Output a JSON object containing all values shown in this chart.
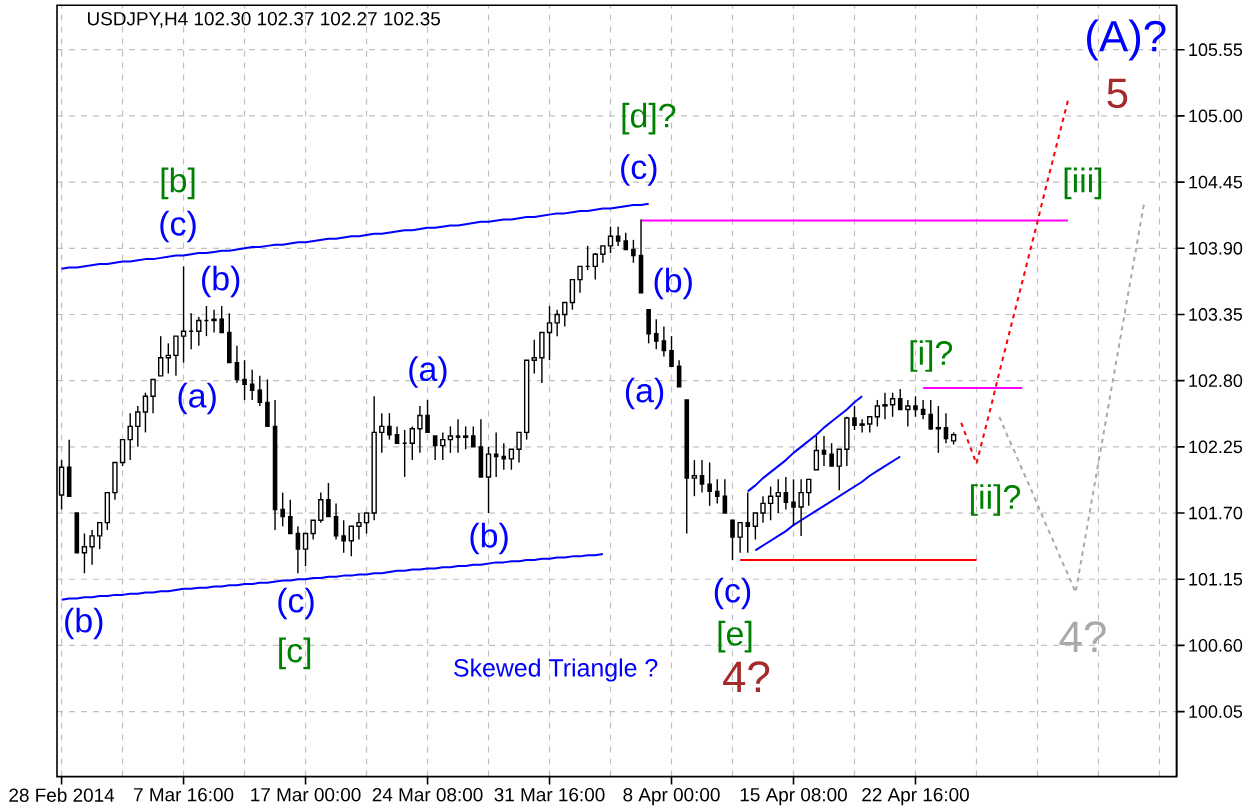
{
  "chart_data": {
    "type": "candlestick",
    "title": "USDJPY,H4 102.30 102.37 102.27 102.35",
    "color": "#000000",
    "categories": [
      "28 Feb 2014",
      null,
      null,
      null,
      null,
      null,
      null,
      null,
      null,
      null,
      null,
      null,
      null,
      null,
      null,
      null,
      "7 Mar 16:00",
      null,
      null,
      null,
      null,
      null,
      null,
      null,
      null,
      null,
      null,
      null,
      null,
      null,
      null,
      null,
      "17 Mar 00:00",
      null,
      null,
      null,
      null,
      null,
      null,
      null,
      null,
      null,
      null,
      null,
      null,
      null,
      null,
      null,
      "24 Mar 08:00",
      null,
      null,
      null,
      null,
      null,
      null,
      null,
      null,
      null,
      null,
      null,
      null,
      null,
      null,
      null,
      "31 Mar 16:00",
      null,
      null,
      null,
      null,
      null,
      null,
      null,
      null,
      null,
      null,
      null,
      null,
      null,
      null,
      null,
      "8 Apr 00:00",
      null,
      null,
      null,
      null,
      null,
      null,
      null,
      null,
      null,
      null,
      null,
      null,
      null,
      null,
      null,
      "15 Apr 08:00",
      null,
      null,
      null,
      null,
      null,
      null,
      null,
      null,
      null,
      null,
      null,
      null,
      null,
      null,
      null,
      "22 Apr 16:00",
      null,
      null,
      null,
      null,
      null,
      null,
      null,
      null,
      null,
      null,
      null,
      null,
      null,
      null,
      null,
      null,
      null,
      null,
      null,
      null,
      null,
      null,
      null,
      null,
      null,
      null,
      null,
      null,
      null,
      null,
      null,
      null,
      null,
      null
    ],
    "ohlc": [
      [
        101.85,
        102.14,
        101.73,
        102.08
      ],
      [
        102.08,
        102.31,
        101.84,
        101.84
      ],
      [
        101.7,
        101.7,
        101.37,
        101.37
      ],
      [
        101.37,
        101.53,
        101.2,
        101.42
      ],
      [
        101.42,
        101.56,
        101.27,
        101.51
      ],
      [
        101.51,
        101.62,
        101.4,
        101.62
      ],
      [
        101.62,
        101.87,
        101.56,
        101.87
      ],
      [
        101.87,
        102.12,
        101.81,
        102.12
      ],
      [
        102.12,
        102.31,
        102.09,
        102.31
      ],
      [
        102.31,
        102.53,
        102.14,
        102.42
      ],
      [
        102.42,
        102.59,
        102.25,
        102.54
      ],
      [
        102.54,
        102.7,
        102.37,
        102.67
      ],
      [
        102.67,
        102.81,
        102.53,
        102.81
      ],
      [
        102.84,
        103.17,
        102.84,
        102.99
      ],
      [
        102.99,
        103.11,
        102.86,
        103.01
      ],
      [
        103.01,
        103.17,
        102.84,
        103.17
      ],
      [
        103.17,
        103.75,
        102.95,
        103.21
      ],
      [
        103.21,
        103.36,
        103.06,
        103.21
      ],
      [
        103.21,
        103.33,
        103.09,
        103.3
      ],
      [
        103.3,
        103.42,
        103.17,
        103.3
      ],
      [
        103.3,
        103.39,
        103.2,
        103.31
      ],
      [
        103.31,
        103.42,
        103.2,
        103.2
      ],
      [
        103.2,
        103.36,
        102.95,
        102.95
      ],
      [
        102.95,
        103.09,
        102.78,
        102.81
      ],
      [
        102.81,
        102.97,
        102.64,
        102.77
      ],
      [
        102.77,
        102.89,
        102.64,
        102.72
      ],
      [
        102.72,
        102.84,
        102.59,
        102.62
      ],
      [
        102.62,
        102.81,
        102.42,
        102.42
      ],
      [
        102.42,
        102.64,
        101.56,
        101.73
      ],
      [
        101.73,
        101.87,
        101.59,
        101.67
      ],
      [
        101.67,
        101.81,
        101.53,
        101.53
      ],
      [
        101.53,
        101.59,
        101.2,
        101.4
      ],
      [
        101.4,
        101.53,
        101.26,
        101.53
      ],
      [
        101.53,
        101.64,
        101.48,
        101.64
      ],
      [
        101.64,
        101.87,
        101.62,
        101.81
      ],
      [
        101.81,
        101.95,
        101.67,
        101.67
      ],
      [
        101.67,
        101.78,
        101.48,
        101.51
      ],
      [
        101.51,
        101.64,
        101.37,
        101.47
      ],
      [
        101.47,
        101.59,
        101.34,
        101.59
      ],
      [
        101.59,
        101.7,
        101.48,
        101.62
      ],
      [
        101.62,
        101.7,
        101.53,
        101.7
      ],
      [
        101.7,
        102.67,
        101.64,
        102.37
      ],
      [
        102.37,
        102.53,
        102.2,
        102.42
      ],
      [
        102.42,
        102.53,
        102.31,
        102.35
      ],
      [
        102.35,
        102.42,
        102.28,
        102.28
      ],
      [
        102.28,
        102.39,
        102.0,
        102.28
      ],
      [
        102.28,
        102.42,
        102.14,
        102.4
      ],
      [
        102.4,
        102.59,
        102.2,
        102.51
      ],
      [
        102.51,
        102.64,
        102.37,
        102.37
      ],
      [
        102.34,
        102.34,
        102.14,
        102.26
      ],
      [
        102.26,
        102.37,
        102.14,
        102.31
      ],
      [
        102.31,
        102.42,
        102.2,
        102.34
      ],
      [
        102.34,
        102.48,
        102.2,
        102.33
      ],
      [
        102.33,
        102.42,
        102.23,
        102.34
      ],
      [
        102.34,
        102.42,
        102.25,
        102.25
      ],
      [
        102.25,
        102.48,
        102.0,
        102.0
      ],
      [
        102.0,
        102.25,
        101.7,
        102.19
      ],
      [
        102.19,
        102.37,
        102.0,
        102.17
      ],
      [
        102.17,
        102.28,
        102.06,
        102.15
      ],
      [
        102.15,
        102.23,
        102.06,
        102.23
      ],
      [
        102.23,
        102.37,
        102.12,
        102.37
      ],
      [
        102.37,
        102.97,
        102.31,
        102.97
      ],
      [
        102.97,
        103.14,
        102.86,
        102.99
      ],
      [
        102.99,
        103.2,
        102.78,
        103.2
      ],
      [
        103.2,
        103.42,
        102.97,
        103.28
      ],
      [
        103.28,
        103.39,
        103.17,
        103.35
      ],
      [
        103.35,
        103.45,
        103.25,
        103.45
      ],
      [
        103.45,
        103.64,
        103.39,
        103.64
      ],
      [
        103.64,
        103.75,
        103.53,
        103.75
      ],
      [
        103.75,
        103.92,
        103.72,
        103.75
      ],
      [
        103.75,
        103.86,
        103.64,
        103.85
      ],
      [
        103.85,
        103.92,
        103.78,
        103.92
      ],
      [
        103.92,
        104.08,
        103.86,
        104.0
      ],
      [
        104.0,
        104.08,
        103.92,
        103.96
      ],
      [
        103.96,
        104.03,
        103.89,
        103.89
      ],
      [
        103.89,
        103.97,
        103.78,
        103.84
      ],
      [
        103.84,
        104.14,
        103.53,
        103.53
      ],
      [
        103.39,
        103.39,
        103.11,
        103.19
      ],
      [
        103.19,
        103.31,
        103.06,
        103.13
      ],
      [
        103.13,
        103.25,
        103.0,
        103.05
      ],
      [
        103.05,
        103.17,
        102.92,
        102.92
      ],
      [
        102.92,
        102.97,
        102.75,
        102.75
      ],
      [
        102.64,
        102.64,
        101.53,
        101.99
      ],
      [
        101.99,
        102.14,
        101.84,
        102.01
      ],
      [
        102.01,
        102.14,
        101.87,
        101.94
      ],
      [
        101.94,
        102.12,
        101.76,
        101.88
      ],
      [
        101.88,
        101.98,
        101.78,
        101.84
      ],
      [
        101.84,
        101.98,
        101.7,
        101.7
      ],
      [
        101.64,
        101.64,
        101.31,
        101.5
      ],
      [
        101.5,
        101.62,
        101.37,
        101.62
      ],
      [
        101.62,
        101.87,
        101.37,
        101.59
      ],
      [
        101.59,
        101.7,
        101.48,
        101.7
      ],
      [
        101.7,
        101.84,
        101.62,
        101.78
      ],
      [
        101.78,
        101.92,
        101.64,
        101.84
      ],
      [
        101.84,
        101.98,
        101.7,
        101.87
      ],
      [
        101.87,
        102.0,
        101.73,
        101.79
      ],
      [
        101.79,
        101.98,
        101.59,
        101.75
      ],
      [
        101.75,
        101.98,
        101.51,
        101.87
      ],
      [
        101.87,
        101.98,
        101.76,
        101.98
      ],
      [
        102.06,
        102.34,
        102.06,
        102.22
      ],
      [
        102.22,
        102.34,
        102.09,
        102.19
      ],
      [
        102.19,
        102.28,
        102.09,
        102.09
      ],
      [
        102.09,
        102.23,
        101.89,
        102.23
      ],
      [
        102.23,
        102.5,
        102.09,
        102.49
      ],
      [
        102.49,
        102.59,
        102.39,
        102.43
      ],
      [
        102.43,
        102.48,
        102.37,
        102.44
      ],
      [
        102.44,
        102.5,
        102.37,
        102.5
      ],
      [
        102.5,
        102.64,
        102.42,
        102.59
      ],
      [
        102.59,
        102.7,
        102.48,
        102.6
      ],
      [
        102.6,
        102.7,
        102.5,
        102.65
      ],
      [
        102.65,
        102.73,
        102.56,
        102.56
      ],
      [
        102.56,
        102.64,
        102.42,
        102.59
      ],
      [
        102.59,
        102.67,
        102.5,
        102.56
      ],
      [
        102.56,
        102.64,
        102.48,
        102.52
      ],
      [
        102.52,
        102.64,
        102.39,
        102.4
      ],
      [
        102.4,
        102.59,
        102.2,
        102.41
      ],
      [
        102.41,
        102.53,
        102.28,
        102.32
      ],
      [
        102.3,
        102.37,
        102.27,
        102.35
      ],
      null,
      null,
      null,
      null,
      null,
      null,
      null,
      null,
      null,
      null,
      null,
      null,
      null,
      null,
      null,
      null,
      null,
      null,
      null,
      null,
      null,
      null,
      null,
      null,
      null,
      null,
      null,
      null,
      null
    ],
    "series": [
      {
        "type": "line",
        "color": "#0000ff",
        "values": [
          103.73,
          103.74,
          103.74,
          103.75,
          103.76,
          103.77,
          103.77,
          103.78,
          103.79,
          103.79,
          103.8,
          103.81,
          103.81,
          103.82,
          103.83,
          103.84,
          103.84,
          103.85,
          103.86,
          103.86,
          103.87,
          103.88,
          103.88,
          103.89,
          103.9,
          103.91,
          103.91,
          103.92,
          103.93,
          103.93,
          103.94,
          103.95,
          103.95,
          103.96,
          103.97,
          103.98,
          103.98,
          103.99,
          104.0,
          104.0,
          104.01,
          104.02,
          104.02,
          104.03,
          104.04,
          104.05,
          104.05,
          104.06,
          104.07,
          104.07,
          104.08,
          104.09,
          104.09,
          104.1,
          104.11,
          104.12,
          104.12,
          104.13,
          104.14,
          104.14,
          104.15,
          104.16,
          104.16,
          104.17,
          104.18,
          104.19,
          104.19,
          104.2,
          104.21,
          104.21,
          104.22,
          104.23,
          104.23,
          104.24,
          104.25,
          104.26,
          104.26,
          104.27,
          null,
          null,
          null,
          null,
          null,
          null,
          null,
          null,
          null,
          null,
          null,
          null,
          null,
          null,
          null,
          null,
          null,
          null,
          null,
          null,
          null,
          null,
          null,
          null,
          null,
          null,
          null,
          null,
          null,
          null,
          null,
          null,
          null,
          null,
          null,
          null,
          null,
          null,
          null,
          null,
          null,
          null,
          null,
          null,
          null,
          null,
          null,
          null,
          null,
          null,
          null,
          null,
          null,
          null,
          null,
          null,
          null,
          null,
          null,
          null,
          null,
          null,
          null,
          null,
          null,
          null,
          null,
          null,
          null
        ]
      },
      {
        "type": "line",
        "color": "#0000fe",
        "values": [
          100.98,
          100.99,
          100.99,
          101.0,
          101.0,
          101.01,
          101.01,
          101.02,
          101.02,
          101.03,
          101.03,
          101.04,
          101.04,
          101.05,
          101.05,
          101.06,
          101.07,
          101.07,
          101.08,
          101.08,
          101.09,
          101.09,
          101.1,
          101.1,
          101.11,
          101.11,
          101.12,
          101.12,
          101.13,
          101.14,
          101.14,
          101.15,
          101.15,
          101.16,
          101.16,
          101.17,
          101.17,
          101.18,
          101.18,
          101.19,
          101.19,
          101.2,
          101.2,
          101.21,
          101.22,
          101.22,
          101.23,
          101.23,
          101.24,
          101.24,
          101.25,
          101.25,
          101.26,
          101.26,
          101.27,
          101.27,
          101.28,
          101.29,
          101.29,
          101.3,
          101.3,
          101.31,
          101.31,
          101.32,
          101.32,
          101.33,
          101.33,
          101.34,
          101.34,
          101.35,
          101.35,
          101.36,
          null,
          null,
          null,
          null,
          null,
          null,
          null,
          null,
          null,
          null,
          null,
          null,
          null,
          null,
          null,
          null,
          null,
          null,
          null,
          null,
          null,
          null,
          null,
          null,
          null,
          null,
          null,
          null,
          null,
          null,
          null,
          null,
          null,
          null,
          null,
          null,
          null,
          null,
          null,
          null,
          null,
          null,
          null,
          null,
          null,
          null,
          null,
          null,
          null,
          null,
          null,
          null,
          null,
          null,
          null,
          null,
          null,
          null,
          null,
          null,
          null,
          null,
          null,
          null,
          null,
          null,
          null,
          null,
          null,
          null,
          null,
          null,
          null,
          null,
          null
        ]
      },
      {
        "type": "line",
        "color": "#0000fd",
        "values": [
          null,
          null,
          null,
          null,
          null,
          null,
          null,
          null,
          null,
          null,
          null,
          null,
          null,
          null,
          null,
          null,
          null,
          null,
          null,
          null,
          null,
          null,
          null,
          null,
          null,
          null,
          null,
          null,
          null,
          null,
          null,
          null,
          null,
          null,
          null,
          null,
          null,
          null,
          null,
          null,
          null,
          null,
          null,
          null,
          null,
          null,
          null,
          null,
          null,
          null,
          null,
          null,
          null,
          null,
          null,
          null,
          null,
          null,
          null,
          null,
          null,
          null,
          null,
          null,
          null,
          null,
          null,
          null,
          null,
          null,
          null,
          null,
          null,
          null,
          null,
          null,
          null,
          null,
          null,
          null,
          null,
          null,
          null,
          null,
          null,
          null,
          null,
          null,
          null,
          null,
          101.88,
          101.93,
          101.99,
          102.04,
          102.09,
          102.14,
          102.2,
          102.25,
          102.3,
          102.35,
          102.41,
          102.46,
          102.51,
          102.56,
          102.62,
          102.67,
          null,
          null,
          null,
          null,
          null,
          null,
          null,
          null,
          null,
          null,
          null,
          null,
          null,
          null,
          null,
          null,
          null,
          null,
          null,
          null,
          null,
          null,
          null,
          null,
          null,
          null,
          null,
          null,
          null,
          null,
          null,
          null,
          null,
          null,
          null,
          null,
          null,
          null,
          null,
          null,
          null
        ]
      },
      {
        "type": "line",
        "color": "#0000fc",
        "values": [
          null,
          null,
          null,
          null,
          null,
          null,
          null,
          null,
          null,
          null,
          null,
          null,
          null,
          null,
          null,
          null,
          null,
          null,
          null,
          null,
          null,
          null,
          null,
          null,
          null,
          null,
          null,
          null,
          null,
          null,
          null,
          null,
          null,
          null,
          null,
          null,
          null,
          null,
          null,
          null,
          null,
          null,
          null,
          null,
          null,
          null,
          null,
          null,
          null,
          null,
          null,
          null,
          null,
          null,
          null,
          null,
          null,
          null,
          null,
          null,
          null,
          null,
          null,
          null,
          null,
          null,
          null,
          null,
          null,
          null,
          null,
          null,
          null,
          null,
          null,
          null,
          null,
          null,
          null,
          null,
          null,
          null,
          null,
          null,
          null,
          null,
          null,
          null,
          null,
          null,
          null,
          101.39,
          101.43,
          101.47,
          101.51,
          101.55,
          101.6,
          101.64,
          101.68,
          101.72,
          101.76,
          101.8,
          101.84,
          101.88,
          101.92,
          101.96,
          102.01,
          102.05,
          102.09,
          102.13,
          102.17,
          null,
          null,
          null,
          null,
          null,
          null,
          null,
          null,
          null,
          null,
          null,
          null,
          null,
          null,
          null,
          null,
          null,
          null,
          null,
          null,
          null,
          null,
          null,
          null,
          null,
          null,
          null,
          null,
          null,
          null,
          null,
          null,
          null,
          null,
          null,
          null
        ]
      },
      {
        "type": "line",
        "color": "#ff00ff",
        "values": [
          null,
          null,
          null,
          null,
          null,
          null,
          null,
          null,
          null,
          null,
          null,
          null,
          null,
          null,
          null,
          null,
          null,
          null,
          null,
          null,
          null,
          null,
          null,
          null,
          null,
          null,
          null,
          null,
          null,
          null,
          null,
          null,
          null,
          null,
          null,
          null,
          null,
          null,
          null,
          null,
          null,
          null,
          null,
          null,
          null,
          null,
          null,
          null,
          null,
          null,
          null,
          null,
          null,
          null,
          null,
          null,
          null,
          null,
          null,
          null,
          null,
          null,
          null,
          null,
          null,
          null,
          null,
          null,
          null,
          null,
          null,
          null,
          null,
          null,
          null,
          null,
          104.13,
          104.13,
          104.13,
          104.13,
          104.13,
          104.13,
          104.13,
          104.13,
          104.13,
          104.13,
          104.13,
          104.13,
          104.13,
          104.13,
          104.13,
          104.13,
          104.13,
          104.13,
          104.13,
          104.13,
          104.13,
          104.13,
          104.13,
          104.13,
          104.13,
          104.13,
          104.13,
          104.13,
          104.13,
          104.13,
          104.13,
          104.13,
          104.13,
          104.13,
          104.13,
          104.13,
          104.13,
          104.13,
          104.13,
          104.13,
          104.13,
          104.13,
          104.13,
          104.13,
          104.13,
          104.13,
          104.13,
          104.13,
          104.13,
          104.13,
          104.13,
          104.13,
          104.13,
          104.13,
          104.13,
          104.13,
          104.13,
          null,
          null,
          null,
          null,
          null,
          null,
          null,
          null,
          null,
          null,
          null,
          null,
          null,
          null
        ]
      },
      {
        "type": "line",
        "color": "#ff0000",
        "values": [
          null,
          null,
          null,
          null,
          null,
          null,
          null,
          null,
          null,
          null,
          null,
          null,
          null,
          null,
          null,
          null,
          null,
          null,
          null,
          null,
          null,
          null,
          null,
          null,
          null,
          null,
          null,
          null,
          null,
          null,
          null,
          null,
          null,
          null,
          null,
          null,
          null,
          null,
          null,
          null,
          null,
          null,
          null,
          null,
          null,
          null,
          null,
          null,
          null,
          null,
          null,
          null,
          null,
          null,
          null,
          null,
          null,
          null,
          null,
          null,
          null,
          null,
          null,
          null,
          null,
          null,
          null,
          null,
          null,
          null,
          null,
          null,
          null,
          null,
          null,
          null,
          null,
          null,
          null,
          null,
          null,
          null,
          null,
          null,
          null,
          null,
          null,
          null,
          null,
          101.31,
          101.31,
          101.31,
          101.31,
          101.31,
          101.31,
          101.31,
          101.31,
          101.31,
          101.31,
          101.31,
          101.31,
          101.31,
          101.31,
          101.31,
          101.31,
          101.31,
          101.31,
          101.31,
          101.31,
          101.31,
          101.31,
          101.31,
          101.31,
          101.31,
          101.31,
          101.31,
          101.31,
          101.31,
          101.31,
          101.31,
          101.31,
          null,
          null,
          null,
          null,
          null,
          null,
          null,
          null,
          null,
          null,
          null,
          null,
          null,
          null,
          null,
          null,
          null,
          null,
          null,
          null,
          null,
          null,
          null,
          null,
          null,
          null
        ]
      },
      {
        "type": "line",
        "color": "#fe00ff",
        "values": [
          null,
          null,
          null,
          null,
          null,
          null,
          null,
          null,
          null,
          null,
          null,
          null,
          null,
          null,
          null,
          null,
          null,
          null,
          null,
          null,
          null,
          null,
          null,
          null,
          null,
          null,
          null,
          null,
          null,
          null,
          null,
          null,
          null,
          null,
          null,
          null,
          null,
          null,
          null,
          null,
          null,
          null,
          null,
          null,
          null,
          null,
          null,
          null,
          null,
          null,
          null,
          null,
          null,
          null,
          null,
          null,
          null,
          null,
          null,
          null,
          null,
          null,
          null,
          null,
          null,
          null,
          null,
          null,
          null,
          null,
          null,
          null,
          null,
          null,
          null,
          null,
          null,
          null,
          null,
          null,
          null,
          null,
          null,
          null,
          null,
          null,
          null,
          null,
          null,
          null,
          null,
          null,
          null,
          null,
          null,
          null,
          null,
          null,
          null,
          null,
          null,
          null,
          null,
          null,
          null,
          null,
          null,
          null,
          null,
          null,
          null,
          null,
          null,
          102.74,
          102.74,
          102.74,
          102.74,
          102.74,
          102.74,
          102.74,
          102.74,
          102.74,
          102.74,
          102.74,
          102.74,
          102.74,
          102.74,
          null,
          null,
          null,
          null,
          null,
          null,
          null,
          null,
          null,
          null,
          null,
          null,
          null,
          null,
          null,
          null,
          null,
          null,
          null,
          null
        ]
      },
      {
        "type": "line",
        "color": "#fe0000",
        "line_style": "dashed",
        "values": [
          null,
          null,
          null,
          null,
          null,
          null,
          null,
          null,
          null,
          null,
          null,
          null,
          null,
          null,
          null,
          null,
          null,
          null,
          null,
          null,
          null,
          null,
          null,
          null,
          null,
          null,
          null,
          null,
          null,
          null,
          null,
          null,
          null,
          null,
          null,
          null,
          null,
          null,
          null,
          null,
          null,
          null,
          null,
          null,
          null,
          null,
          null,
          null,
          null,
          null,
          null,
          null,
          null,
          null,
          null,
          null,
          null,
          null,
          null,
          null,
          null,
          null,
          null,
          null,
          null,
          null,
          null,
          null,
          null,
          null,
          null,
          null,
          null,
          null,
          null,
          null,
          null,
          null,
          null,
          null,
          null,
          null,
          null,
          null,
          null,
          null,
          null,
          null,
          null,
          null,
          null,
          null,
          null,
          null,
          null,
          null,
          null,
          null,
          null,
          null,
          null,
          null,
          null,
          null,
          null,
          null,
          null,
          null,
          null,
          null,
          null,
          null,
          null,
          null,
          null,
          null,
          null,
          null,
          102.45,
          102.28,
          102.11,
          102.36,
          102.61,
          102.87,
          103.12,
          103.37,
          103.62,
          103.87,
          104.12,
          104.38,
          104.63,
          104.88,
          105.13,
          null,
          null,
          null,
          null,
          null,
          null,
          null,
          null,
          null,
          null,
          null,
          null,
          null,
          null
        ]
      },
      {
        "type": "line",
        "color": "#a9a9a9",
        "line_style": "dashed",
        "values": [
          null,
          null,
          null,
          null,
          null,
          null,
          null,
          null,
          null,
          null,
          null,
          null,
          null,
          null,
          null,
          null,
          null,
          null,
          null,
          null,
          null,
          null,
          null,
          null,
          null,
          null,
          null,
          null,
          null,
          null,
          null,
          null,
          null,
          null,
          null,
          null,
          null,
          null,
          null,
          null,
          null,
          null,
          null,
          null,
          null,
          null,
          null,
          null,
          null,
          null,
          null,
          null,
          null,
          null,
          null,
          null,
          null,
          null,
          null,
          null,
          null,
          null,
          null,
          null,
          null,
          null,
          null,
          null,
          null,
          null,
          null,
          null,
          null,
          null,
          null,
          null,
          null,
          null,
          null,
          null,
          null,
          null,
          null,
          null,
          null,
          null,
          null,
          null,
          null,
          null,
          null,
          null,
          null,
          null,
          null,
          null,
          null,
          null,
          null,
          null,
          null,
          null,
          null,
          null,
          null,
          null,
          null,
          null,
          null,
          null,
          null,
          null,
          null,
          null,
          null,
          null,
          null,
          null,
          null,
          null,
          null,
          null,
          null,
          102.5,
          102.35,
          102.21,
          102.06,
          101.92,
          101.77,
          101.62,
          101.48,
          101.33,
          101.19,
          101.04,
          101.4,
          101.76,
          102.12,
          102.48,
          102.84,
          103.2,
          103.56,
          103.92,
          104.28,
          null,
          null,
          null,
          null
        ]
      }
    ],
    "annotations": [
      "(b)",
      "[b]",
      "(c)",
      "(b)",
      "(a)",
      "(c)",
      "[c]",
      "(a)",
      "(b)",
      "Skewed Triangle ?",
      "[d]?",
      "(c)",
      "(b)",
      "(a)",
      "(c)",
      "[e]",
      "4?",
      "[i]?",
      "[ii]?",
      "[iii]",
      "5",
      "(A)?",
      "4?"
    ],
    "ylim": [
      99.51,
      105.92
    ],
    "yticks": [
      100.05,
      {
        "value": 100.6,
        "label": "100.60"
      },
      101.15,
      {
        "value": 101.7,
        "label": "101.70"
      },
      102.25,
      {
        "value": 102.8,
        "label": "102.80"
      },
      103.35,
      {
        "value": 103.9,
        "label": "103.90"
      },
      104.45,
      {
        "value": 105,
        "label": "105.00"
      },
      105.55
    ],
    "grid": true
  }
}
